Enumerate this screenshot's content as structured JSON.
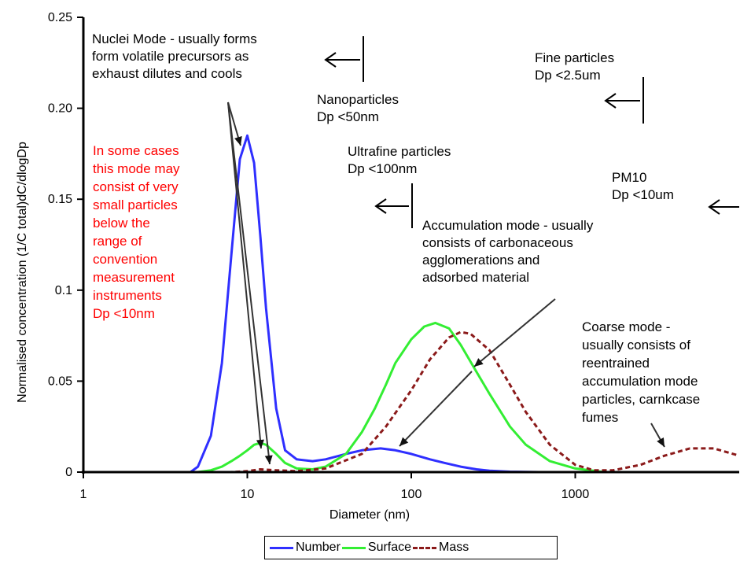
{
  "chart_data": {
    "type": "line",
    "x_scale": "log",
    "xlabel": "Diameter (nm)",
    "ylabel": "Normalised concentration (1/C total)dC/dlogDp",
    "xlim": [
      1,
      10000
    ],
    "ylim": [
      0,
      0.25
    ],
    "x_ticks": [
      "1",
      "10",
      "100",
      "1000"
    ],
    "y_ticks": [
      "0",
      "0.05",
      "0.1",
      "0.15",
      "0.20",
      "0.25"
    ],
    "grid": false,
    "legend_position": "bottom",
    "series": [
      {
        "name": "Number",
        "color": "#2f2fff",
        "style": "solid",
        "x": [
          4.5,
          5,
          6,
          7,
          8,
          9,
          10,
          11,
          12,
          13,
          15,
          17,
          20,
          25,
          30,
          40,
          50,
          65,
          80,
          100,
          130,
          160,
          200,
          250,
          300,
          400,
          600
        ],
        "y": [
          0.0,
          0.003,
          0.02,
          0.06,
          0.12,
          0.172,
          0.185,
          0.17,
          0.13,
          0.09,
          0.035,
          0.012,
          0.007,
          0.006,
          0.007,
          0.01,
          0.012,
          0.013,
          0.012,
          0.01,
          0.007,
          0.005,
          0.003,
          0.0015,
          0.0008,
          0.0002,
          0.0
        ]
      },
      {
        "name": "Surface",
        "color": "#33ee33",
        "style": "solid",
        "x": [
          5,
          6,
          7,
          8,
          9,
          10,
          11,
          12,
          13,
          15,
          17,
          20,
          25,
          30,
          40,
          50,
          60,
          70,
          80,
          100,
          120,
          140,
          170,
          200,
          250,
          300,
          400,
          500,
          700,
          1000,
          1500
        ],
        "y": [
          0.0,
          0.001,
          0.003,
          0.006,
          0.009,
          0.012,
          0.015,
          0.016,
          0.015,
          0.01,
          0.005,
          0.002,
          0.0015,
          0.003,
          0.01,
          0.022,
          0.035,
          0.048,
          0.06,
          0.073,
          0.08,
          0.082,
          0.079,
          0.07,
          0.055,
          0.043,
          0.025,
          0.015,
          0.006,
          0.002,
          0.0
        ]
      },
      {
        "name": "Mass",
        "color": "#8b1a1a",
        "style": "dashed",
        "x": [
          3.5,
          8,
          10,
          12,
          15,
          20,
          30,
          50,
          70,
          100,
          130,
          170,
          200,
          230,
          300,
          400,
          500,
          700,
          1000,
          1300,
          1700,
          2500,
          3500,
          5000,
          7000,
          10000
        ],
        "y": [
          0.0,
          0.0,
          0.0005,
          0.0015,
          0.001,
          0.0005,
          0.002,
          0.01,
          0.025,
          0.045,
          0.062,
          0.074,
          0.077,
          0.076,
          0.067,
          0.048,
          0.033,
          0.015,
          0.004,
          0.001,
          0.001,
          0.004,
          0.009,
          0.013,
          0.013,
          0.009
        ]
      }
    ]
  },
  "annotations": {
    "nuclei": [
      "Nuclei Mode - usually forms",
      "form volatile precursors as",
      "exhaust dilutes and cools"
    ],
    "nano": [
      "Nanoparticles",
      "Dp <50nm"
    ],
    "fine": [
      "Fine particles",
      "Dp <2.5um"
    ],
    "red_note": [
      "In some cases",
      "this mode may",
      "consist of very",
      "small particles",
      "below the",
      "range of",
      "convention",
      "measurement",
      "instruments",
      "Dp <10nm"
    ],
    "ultrafine": [
      "Ultrafine particles",
      "Dp <100nm"
    ],
    "pm10": [
      "PM10",
      "Dp <10um"
    ],
    "accumulation": [
      "Accumulation mode - usually",
      "consists of carbonaceous",
      "agglomerations and",
      "adsorbed material"
    ],
    "coarse": [
      "Coarse mode -",
      "usually consists of",
      "reentrained",
      "accumulation mode",
      "particles, carnkcase",
      "fumes"
    ]
  },
  "colors": {
    "red_text": "#ff0000",
    "axis": "#000000"
  }
}
